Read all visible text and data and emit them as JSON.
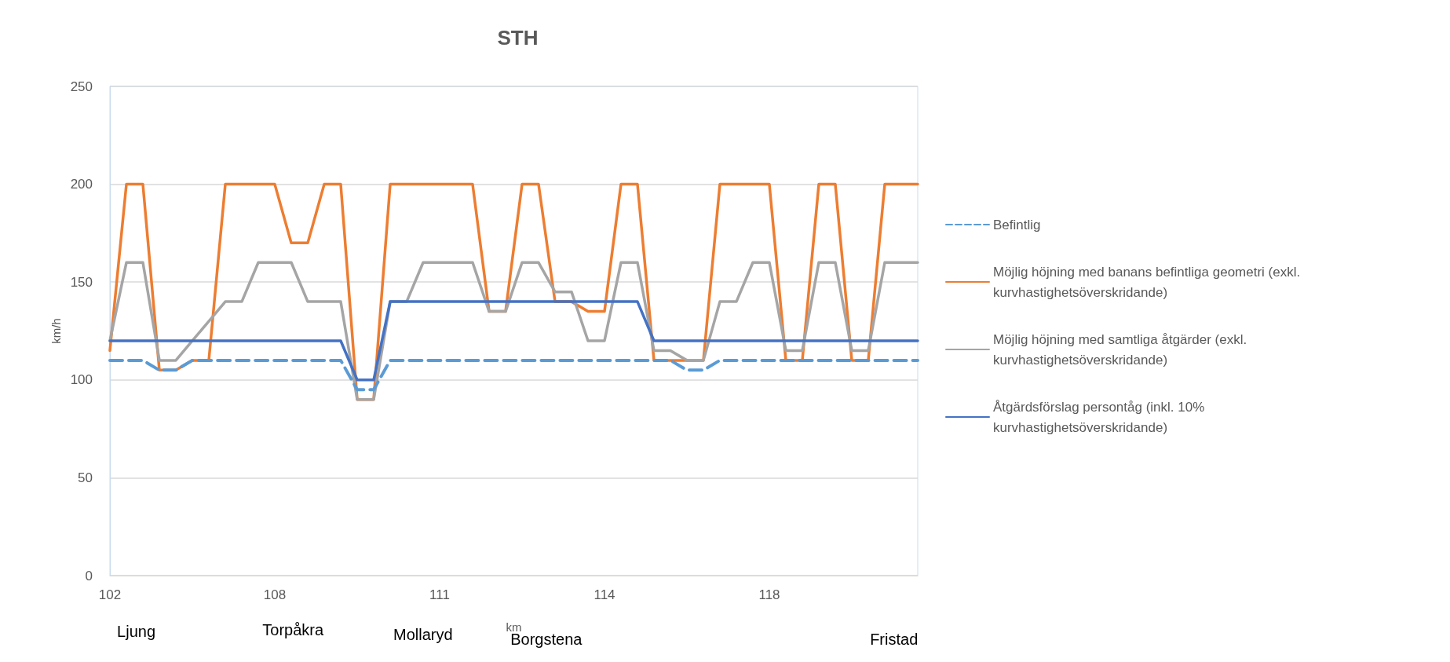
{
  "chart_data": {
    "type": "line",
    "title": "STH",
    "xlabel": "km",
    "ylabel": "km/h",
    "annotations": [
      "Ljung",
      "Torpåkra",
      "Mollaryd",
      "Borgstena",
      "Fristad"
    ],
    "categories": [
      "102",
      null,
      null,
      null,
      null,
      null,
      null,
      null,
      null,
      null,
      "108",
      null,
      null,
      null,
      null,
      null,
      null,
      null,
      null,
      null,
      "111",
      null,
      null,
      null,
      null,
      null,
      null,
      null,
      null,
      null,
      "114",
      null,
      null,
      null,
      null,
      null,
      null,
      null,
      null,
      null,
      "118",
      null,
      null,
      null,
      null,
      null,
      null,
      null,
      null,
      null
    ],
    "series": [
      {
        "name": "Befintlig",
        "color": "#5b9bd5",
        "line_style": "dashed",
        "values": [
          110,
          110,
          110,
          105,
          105,
          110,
          110,
          110,
          110,
          110,
          110,
          110,
          110,
          110,
          110,
          95,
          95,
          110,
          110,
          110,
          110,
          110,
          110,
          110,
          110,
          110,
          110,
          110,
          110,
          110,
          110,
          110,
          110,
          110,
          110,
          105,
          105,
          110,
          110,
          110,
          110,
          110,
          110,
          110,
          110,
          110,
          110,
          110,
          110,
          110
        ]
      },
      {
        "name": "Möjlig höjning med banans befintliga geometri (exkl. kurvhastighetsöverskridande)",
        "color": "#ed7d31",
        "values": [
          115,
          200,
          200,
          105,
          105,
          110,
          110,
          200,
          200,
          200,
          200,
          170,
          170,
          200,
          200,
          90,
          90,
          200,
          200,
          200,
          200,
          200,
          200,
          135,
          135,
          200,
          200,
          140,
          140,
          135,
          135,
          200,
          200,
          110,
          110,
          110,
          110,
          200,
          200,
          200,
          200,
          110,
          110,
          200,
          200,
          110,
          110,
          200,
          200,
          200
        ]
      },
      {
        "name": "Möjlig höjning med samtliga åtgärder (exkl. kurvhastighetsöverskridande)",
        "color": "#a5a5a5",
        "values": [
          120,
          160,
          160,
          110,
          110,
          120,
          130,
          140,
          140,
          160,
          160,
          160,
          140,
          140,
          140,
          90,
          90,
          140,
          140,
          160,
          160,
          160,
          160,
          135,
          135,
          160,
          160,
          145,
          145,
          120,
          120,
          160,
          160,
          115,
          115,
          110,
          110,
          140,
          140,
          160,
          160,
          115,
          115,
          160,
          160,
          115,
          115,
          160,
          160,
          160
        ]
      },
      {
        "name": "Åtgärdsförslag persontåg (inkl. 10% kurvhastighetsöverskridande)",
        "color": "#4472c4",
        "values": [
          120,
          120,
          120,
          120,
          120,
          120,
          120,
          120,
          120,
          120,
          120,
          120,
          120,
          120,
          120,
          100,
          100,
          140,
          140,
          140,
          140,
          140,
          140,
          140,
          140,
          140,
          140,
          140,
          140,
          140,
          140,
          140,
          140,
          120,
          120,
          120,
          120,
          120,
          120,
          120,
          120,
          120,
          120,
          120,
          120,
          120,
          120,
          120,
          120,
          120
        ]
      }
    ],
    "ylim": [
      0,
      250
    ],
    "yticks": [
      0,
      50,
      100,
      150,
      200,
      250
    ],
    "grid": "y",
    "legend": "right",
    "marker": "none"
  }
}
